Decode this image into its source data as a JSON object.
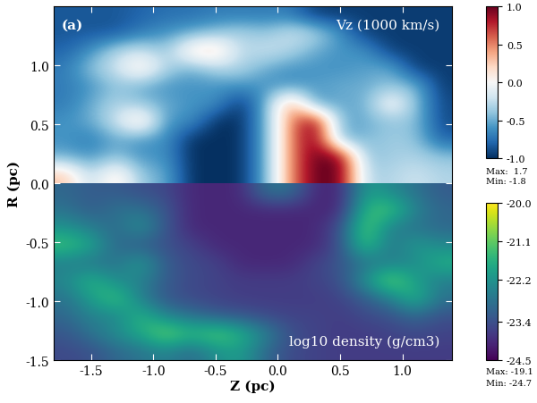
{
  "chart_data": {
    "type": "heatmap",
    "xlabel": "Z (pc)",
    "ylabel": "R (pc)",
    "panel_label": "(a)",
    "xlim": [
      -1.8,
      1.4
    ],
    "ylim": [
      -1.5,
      1.5
    ],
    "xticks": [
      -1.5,
      -1.0,
      -0.5,
      0.0,
      0.5,
      1.0
    ],
    "yticks": [
      -1.5,
      -1.0,
      -0.5,
      0.0,
      0.5,
      1.0
    ],
    "fields": [
      {
        "name": "Vz (1000 km/s)",
        "z_range": [
          -1.8,
          1.4
        ],
        "r_range": [
          0.0,
          1.5
        ],
        "cells": [
          [
            0.3,
            -0.3,
            0.2,
            -0.4,
            -0.5,
            -1.0,
            -1.0,
            -1.0,
            -0.5,
            0.5,
            1.0,
            1.0,
            -0.3,
            -0.3,
            -0.2,
            -0.3
          ],
          [
            -0.5,
            -0.6,
            -0.4,
            -0.6,
            -0.6,
            -1.0,
            -1.0,
            -1.0,
            -0.5,
            0.5,
            1.0,
            1.0,
            -0.4,
            -0.35,
            -0.3,
            -0.4
          ],
          [
            -0.6,
            -0.7,
            -0.5,
            -0.6,
            -0.6,
            -1.0,
            -1.0,
            -1.0,
            -0.5,
            0.5,
            1.0,
            -0.5,
            -0.45,
            -0.35,
            -0.4,
            -0.8
          ],
          [
            -0.6,
            -0.5,
            -0.2,
            0.3,
            -0.6,
            -0.6,
            -1.0,
            -1.0,
            -0.5,
            0.5,
            1.0,
            -0.5,
            -0.5,
            -0.4,
            -0.4,
            -0.9
          ],
          [
            -0.7,
            -0.5,
            -0.3,
            -0.4,
            -0.5,
            -0.6,
            -0.6,
            -1.0,
            -0.5,
            0.5,
            -0.6,
            -0.5,
            -0.5,
            0.1,
            -0.4,
            -0.9
          ],
          [
            -0.7,
            -0.6,
            -0.4,
            -0.5,
            -0.6,
            -0.6,
            -0.6,
            -0.6,
            -0.6,
            -0.6,
            -0.55,
            -0.5,
            -0.5,
            -0.4,
            -0.45,
            -0.95
          ],
          [
            -0.7,
            -0.4,
            -0.2,
            0.2,
            -0.3,
            -0.5,
            -0.3,
            -0.3,
            -0.5,
            -0.6,
            -0.6,
            -0.6,
            -0.55,
            -0.5,
            -0.95,
            -0.95
          ],
          [
            -0.8,
            -0.6,
            -0.3,
            -0.2,
            -0.4,
            0.2,
            0.3,
            -0.3,
            -0.2,
            -0.3,
            -0.5,
            -0.6,
            -0.6,
            -0.95,
            -0.95,
            -0.95
          ],
          [
            -0.85,
            -0.85,
            -0.85,
            -0.7,
            -0.6,
            -0.5,
            -0.4,
            -0.3,
            -0.4,
            -0.2,
            -0.3,
            -0.6,
            -0.95,
            -0.95,
            -0.95,
            -0.95
          ],
          [
            -0.85,
            -0.85,
            -0.85,
            -0.8,
            -0.75,
            -0.75,
            -0.7,
            -0.7,
            -0.7,
            -0.7,
            -0.95,
            -0.95,
            -0.95,
            -0.95,
            -0.95,
            -0.95
          ]
        ],
        "colorbar_range": [
          -1.0,
          1.0
        ],
        "colorbar_ticks": [
          -1.0,
          -0.5,
          0.0,
          0.5,
          1.0
        ],
        "max_label": "Max:  1.7",
        "min_label": "Min: -1.8"
      },
      {
        "name": "log10 density (g/cm3)",
        "z_range": [
          -1.8,
          1.4
        ],
        "r_range": [
          -1.5,
          0.0
        ],
        "cells": [
          [
            -23.5,
            -23.4,
            -23.0,
            -22.8,
            -22.5,
            -23.0,
            -22.3,
            -22.0,
            -23.0,
            -23.5,
            -23.6,
            -23.7,
            -23.7,
            -23.7,
            -23.7,
            -23.7
          ],
          [
            -23.3,
            -22.8,
            -22.3,
            -21.8,
            -20.8,
            -21.5,
            -21.0,
            -21.6,
            -22.5,
            -23.4,
            -23.6,
            -23.7,
            -23.7,
            -23.6,
            -23.5,
            -23.6
          ],
          [
            -23.0,
            -22.5,
            -22.5,
            -21.5,
            -22.5,
            -22.8,
            -23.2,
            -23.3,
            -23.5,
            -23.6,
            -23.6,
            -23.7,
            -23.5,
            -23.4,
            -23.0,
            -23.4
          ],
          [
            -22.8,
            -22.0,
            -21.2,
            -22.6,
            -23.3,
            -23.5,
            -23.6,
            -23.7,
            -23.7,
            -23.7,
            -23.7,
            -23.6,
            -23.2,
            -22.6,
            -21.5,
            -22.8
          ],
          [
            -22.4,
            -21.5,
            -22.4,
            -22.5,
            -23.2,
            -23.5,
            -23.6,
            -23.7,
            -23.7,
            -23.7,
            -23.6,
            -23.4,
            -22.2,
            -20.8,
            -22.0,
            -22.6
          ],
          [
            -22.6,
            -22.8,
            -22.8,
            -22.0,
            -23.2,
            -23.5,
            -23.6,
            -24.0,
            -24.0,
            -24.0,
            -23.6,
            -23.3,
            -22.8,
            -22.6,
            -22.4,
            -21.6
          ],
          [
            -21.3,
            -21.8,
            -23.0,
            -23.2,
            -23.4,
            -23.6,
            -24.0,
            -24.0,
            -24.0,
            -24.0,
            -24.0,
            -23.4,
            -21.2,
            -22.8,
            -22.0,
            -22.4
          ],
          [
            -22.2,
            -22.6,
            -23.0,
            -22.2,
            -23.3,
            -24.0,
            -24.0,
            -24.0,
            -24.0,
            -24.0,
            -24.0,
            -23.4,
            -21.0,
            -22.6,
            -22.8,
            -23.0
          ],
          [
            -22.8,
            -23.2,
            -22.8,
            -22.8,
            -23.3,
            -24.0,
            -24.0,
            -24.0,
            -24.0,
            -24.0,
            -24.0,
            -24.0,
            -21.5,
            -21.2,
            -22.5,
            -23.0
          ],
          [
            -23.0,
            -23.2,
            -23.2,
            -23.4,
            -23.5,
            -24.0,
            -24.0,
            -24.0,
            -22.8,
            -22.8,
            -24.0,
            -24.0,
            -22.0,
            -22.4,
            -22.8,
            -23.2
          ]
        ],
        "colorbar_range": [
          -24.5,
          -20.0
        ],
        "colorbar_ticks": [
          -24.5,
          -23.4,
          -22.2,
          -21.1,
          -20.0
        ],
        "max_label": "Max: -19.1",
        "min_label": "Min: -24.7"
      }
    ]
  }
}
